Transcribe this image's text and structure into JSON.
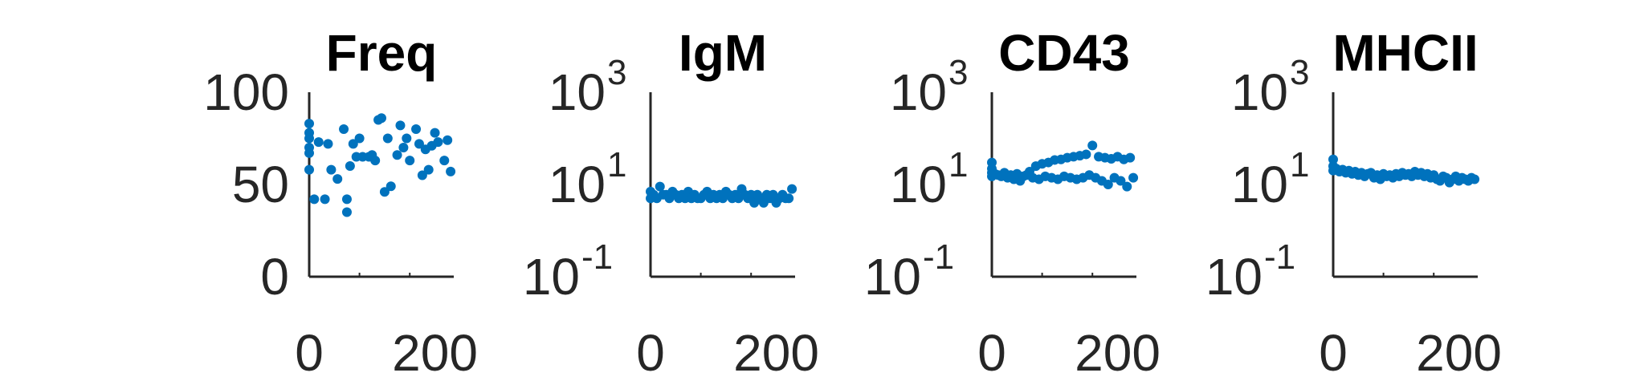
{
  "colors": {
    "marker": "#0072BD",
    "axis": "#262626",
    "title": "#000000"
  },
  "chart_data": [
    {
      "type": "scatter",
      "title": "Freq",
      "yscale": "linear",
      "xlim": [
        0,
        230
      ],
      "ylim": [
        0,
        100
      ],
      "xticks": [
        0,
        200
      ],
      "xtick_labels": [
        "0",
        "200"
      ],
      "yticks": [
        0,
        50,
        100
      ],
      "ytick_labels": [
        "0",
        "50",
        "100"
      ],
      "grid": false,
      "legend": "none",
      "x": [
        0,
        0,
        0,
        0,
        0,
        0,
        8,
        15,
        25,
        30,
        35,
        45,
        55,
        60,
        60,
        65,
        70,
        75,
        80,
        85,
        95,
        100,
        105,
        110,
        115,
        120,
        125,
        130,
        140,
        145,
        150,
        155,
        160,
        170,
        175,
        180,
        185,
        190,
        195,
        200,
        205,
        215,
        220,
        225
      ],
      "y": [
        83,
        78,
        75,
        70,
        67,
        58,
        42,
        73,
        42,
        72,
        58,
        53,
        80,
        35,
        42,
        60,
        72,
        65,
        75,
        65,
        65,
        66,
        63,
        85,
        86,
        46,
        75,
        49,
        66,
        82,
        70,
        75,
        63,
        80,
        72,
        55,
        69,
        58,
        71,
        78,
        73,
        63,
        74,
        57
      ]
    },
    {
      "type": "scatter",
      "title": "IgM",
      "yscale": "log",
      "xlim": [
        0,
        230
      ],
      "ylim": [
        0.1,
        1000
      ],
      "xticks": [
        0,
        200
      ],
      "xtick_labels": [
        "0",
        "200"
      ],
      "yticks": [
        0.1,
        10,
        1000
      ],
      "ytick_labels": [
        {
          "base": "10",
          "exp": "-1"
        },
        {
          "base": "10",
          "exp": "1"
        },
        {
          "base": "10",
          "exp": "3"
        }
      ],
      "grid": false,
      "legend": "none",
      "x": [
        0,
        0,
        5,
        10,
        15,
        20,
        25,
        30,
        35,
        40,
        45,
        50,
        55,
        60,
        65,
        70,
        75,
        80,
        85,
        90,
        95,
        100,
        105,
        110,
        115,
        120,
        125,
        130,
        135,
        140,
        145,
        150,
        155,
        160,
        165,
        170,
        175,
        180,
        185,
        190,
        195,
        200,
        205,
        210,
        215,
        220,
        225
      ],
      "y": [
        7,
        5,
        6,
        5,
        9,
        6,
        6,
        5,
        7,
        6,
        5,
        6,
        5,
        7,
        5,
        6,
        5,
        5,
        6,
        7,
        5,
        6,
        5,
        6,
        5,
        7,
        6,
        5,
        6,
        5,
        8,
        6,
        5,
        6,
        4,
        6,
        5,
        4,
        6,
        5,
        6,
        4,
        5,
        6,
        5,
        5,
        8
      ]
    },
    {
      "type": "scatter",
      "title": "CD43",
      "yscale": "log",
      "xlim": [
        0,
        230
      ],
      "ylim": [
        0.1,
        1000
      ],
      "xticks": [
        0,
        200
      ],
      "xtick_labels": [
        "0",
        "200"
      ],
      "yticks": [
        0.1,
        10,
        1000
      ],
      "ytick_labels": [
        {
          "base": "10",
          "exp": "-1"
        },
        {
          "base": "10",
          "exp": "1"
        },
        {
          "base": "10",
          "exp": "3"
        }
      ],
      "grid": false,
      "legend": "none",
      "x": [
        0,
        0,
        0,
        0,
        5,
        10,
        15,
        20,
        25,
        30,
        35,
        40,
        45,
        50,
        55,
        60,
        65,
        70,
        75,
        80,
        85,
        90,
        95,
        100,
        105,
        110,
        115,
        120,
        125,
        130,
        135,
        140,
        145,
        150,
        155,
        160,
        165,
        170,
        175,
        180,
        185,
        190,
        195,
        200,
        205,
        210,
        215,
        220,
        225
      ],
      "y": [
        30,
        22,
        18,
        15,
        17,
        16,
        15,
        18,
        14,
        16,
        13,
        17,
        12,
        15,
        16,
        19,
        14,
        25,
        13,
        28,
        15,
        30,
        14,
        34,
        13,
        35,
        15,
        38,
        14,
        40,
        13,
        42,
        14,
        45,
        16,
        70,
        14,
        40,
        12,
        38,
        10,
        36,
        14,
        40,
        12,
        35,
        9,
        38,
        14
      ]
    },
    {
      "type": "scatter",
      "title": "MHCII",
      "yscale": "log",
      "xlim": [
        0,
        230
      ],
      "ylim": [
        0.1,
        1000
      ],
      "xticks": [
        0,
        200
      ],
      "xtick_labels": [
        "0",
        "200"
      ],
      "yticks": [
        0.1,
        10,
        1000
      ],
      "ytick_labels": [
        {
          "base": "10",
          "exp": "-1"
        },
        {
          "base": "10",
          "exp": "1"
        },
        {
          "base": "10",
          "exp": "3"
        }
      ],
      "grid": false,
      "legend": "none",
      "x": [
        0,
        0,
        0,
        5,
        10,
        15,
        20,
        25,
        30,
        35,
        40,
        45,
        50,
        55,
        60,
        65,
        70,
        75,
        80,
        85,
        90,
        95,
        100,
        105,
        110,
        115,
        120,
        125,
        130,
        135,
        140,
        145,
        150,
        155,
        160,
        165,
        170,
        175,
        180,
        185,
        190,
        195,
        200,
        205,
        210,
        215,
        220,
        225
      ],
      "y": [
        35,
        25,
        20,
        22,
        19,
        21,
        18,
        20,
        17,
        19,
        16,
        18,
        15,
        17,
        18,
        14,
        16,
        13,
        17,
        15,
        16,
        14,
        17,
        15,
        18,
        16,
        17,
        15,
        19,
        16,
        18,
        15,
        17,
        14,
        16,
        13,
        12,
        15,
        14,
        11,
        13,
        15,
        12,
        14,
        13,
        12,
        14,
        13
      ]
    }
  ]
}
